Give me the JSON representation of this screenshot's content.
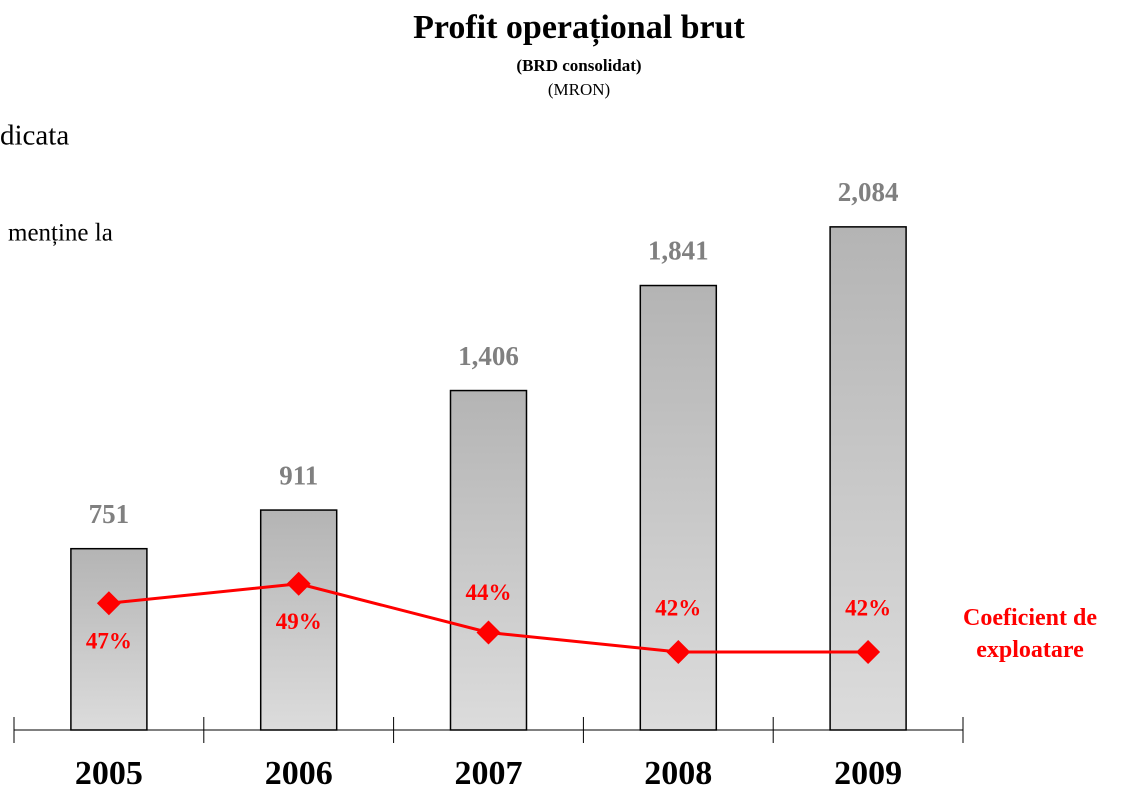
{
  "chart_data": {
    "type": "bar",
    "title": "Profit operațional brut",
    "subtitle": "(BRD consolidat)",
    "unit_label": "(MRON)",
    "categories": [
      "2005",
      "2006",
      "2007",
      "2008",
      "2009"
    ],
    "values": [
      751,
      911,
      1406,
      1841,
      2084
    ],
    "value_labels": [
      "751",
      "911",
      "1,406",
      "1,841",
      "2,084"
    ],
    "color": "#c0c0c0",
    "label_color": "#808080",
    "ylim": [
      0,
      2100
    ],
    "series": [
      {
        "name": "Coeficient de exploatare",
        "color": "#ff0000",
        "type": "line",
        "axis": "y2",
        "values": [
          47,
          49,
          44,
          42,
          42
        ],
        "value_labels": [
          "47%",
          "49%",
          "44%",
          "42%",
          "42%"
        ]
      }
    ],
    "y2lim": [
      34,
      86
    ]
  },
  "slide_text": [
    "dicata",
    "menține la"
  ]
}
